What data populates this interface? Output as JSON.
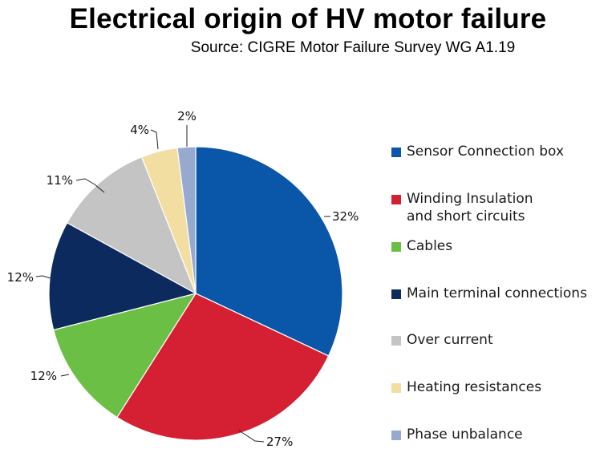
{
  "chart_data": {
    "type": "pie",
    "title": "Electrical origin of HV motor failure",
    "subtitle": "Source: CIGRE Motor Failure Survey WG A1.19",
    "slices": [
      {
        "label": "Sensor Connection box",
        "value": 32,
        "value_label": "32%",
        "color": "#0a56a8"
      },
      {
        "label": "Winding Insulation\nand short circuits",
        "value": 27,
        "value_label": "27%",
        "color": "#d42032"
      },
      {
        "label": "Cables",
        "value": 12,
        "value_label": "12%",
        "color": "#6cbf45"
      },
      {
        "label": "Main terminal connections",
        "value": 12,
        "value_label": "12%",
        "color": "#0d2a5e"
      },
      {
        "label": "Over current",
        "value": 11,
        "value_label": "11%",
        "color": "#c4c4c4"
      },
      {
        "label": "Heating resistances",
        "value": 4,
        "value_label": "4%",
        "color": "#f2dea1"
      },
      {
        "label": "Phase unbalance",
        "value": 2,
        "value_label": "2%",
        "color": "#96aad0"
      }
    ],
    "start_angle": "12 o'clock",
    "direction": "clockwise",
    "legend_position": "right"
  }
}
